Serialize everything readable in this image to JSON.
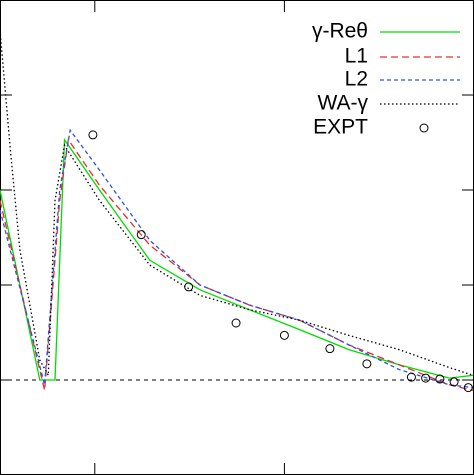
{
  "chart_data": {
    "type": "line",
    "xlim": [
      0,
      5
    ],
    "ylim": [
      -1,
      4
    ],
    "xticks": [
      1,
      3
    ],
    "yticks": [
      0,
      1,
      2,
      3
    ],
    "reference_line": 0,
    "legend": "top-right",
    "series": [
      {
        "name": "γ-Reθ",
        "color": "#00dd00",
        "dash": "solid",
        "x": [
          0,
          0.42,
          0.58,
          0.68,
          1.05,
          1.58,
          2.11,
          2.63,
          3.16,
          3.68,
          4.21,
          4.74,
          4.99
        ],
        "values": [
          2.0,
          0,
          0,
          2.53,
          2.0,
          1.26,
          0.95,
          0.74,
          0.53,
          0.32,
          0.16,
          0.02,
          0.05
        ]
      },
      {
        "name": "L1",
        "color": "#e03030",
        "dash": "dashed",
        "x": [
          0,
          0.47,
          0.63,
          0.72,
          1.05,
          1.58,
          2.11,
          2.63,
          3.16,
          3.68,
          4.21,
          4.74,
          4.99
        ],
        "values": [
          1.89,
          -0.11,
          1.89,
          2.53,
          2.05,
          1.42,
          1.0,
          0.79,
          0.63,
          0.37,
          0.16,
          -0.05,
          -0.11
        ]
      },
      {
        "name": "L2",
        "color": "#3050e0",
        "dash": "fine",
        "x": [
          0,
          0.47,
          0.63,
          0.74,
          1.05,
          1.58,
          2.11,
          2.63,
          3.16,
          3.68,
          4.21,
          4.74,
          4.99
        ],
        "values": [
          1.79,
          -0.05,
          2.0,
          2.63,
          2.21,
          1.47,
          1.0,
          0.79,
          0.63,
          0.37,
          0.11,
          -0.05,
          -0.08
        ]
      },
      {
        "name": "WA-γ",
        "color": "#000000",
        "dash": "dotted",
        "x": [
          0,
          0.11,
          0.21,
          0.42,
          0.51,
          0.58,
          0.68,
          1.05,
          1.58,
          2.11,
          2.63,
          3.16,
          3.68,
          4.21,
          4.74,
          4.99
        ],
        "values": [
          3.68,
          2.42,
          1.37,
          0.21,
          0.05,
          1.89,
          2.47,
          1.89,
          1.21,
          0.89,
          0.74,
          0.63,
          0.47,
          0.32,
          0.13,
          0.05
        ]
      },
      {
        "name": "EXPT",
        "color": "#000000",
        "mode": "markers",
        "x": [
          0.98,
          1.49,
          1.99,
          2.49,
          3.0,
          3.48,
          3.87,
          4.34,
          4.49,
          4.64,
          4.79,
          4.94
        ],
        "values": [
          2.58,
          1.53,
          0.98,
          0.6,
          0.47,
          0.33,
          0.17,
          0.03,
          0.02,
          0.01,
          -0.02,
          -0.08
        ]
      }
    ]
  }
}
